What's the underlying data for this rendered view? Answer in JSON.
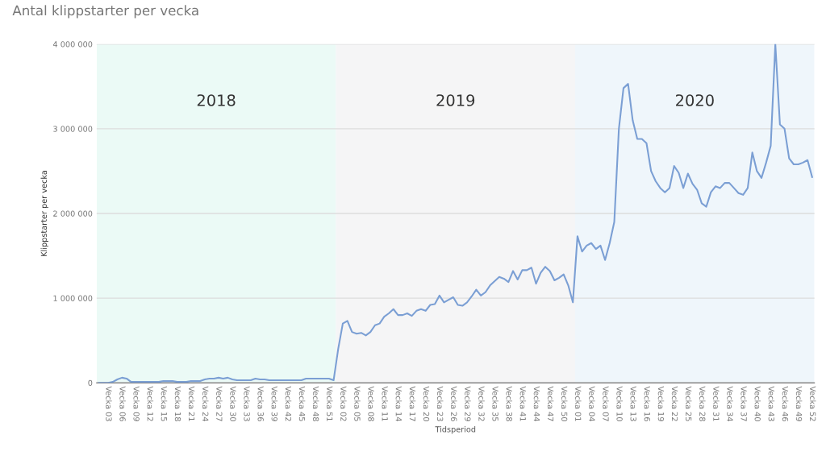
{
  "chart_data": {
    "type": "line",
    "title": "Antal klippstarter per vecka",
    "ylabel": "Klippstarter per vecka",
    "xlabel": "Tidsperiod",
    "categories": [
      null,
      null,
      "Vecka 03",
      null,
      null,
      "Vecka 06",
      null,
      null,
      "Vecka 09",
      null,
      null,
      "Vecka 12",
      null,
      null,
      "Vecka 15",
      null,
      null,
      "Vecka 18",
      null,
      null,
      "Vecka 21",
      null,
      null,
      "Vecka 24",
      null,
      null,
      "Vecka 27",
      null,
      null,
      "Vecka 30",
      null,
      null,
      "Vecka 33",
      null,
      null,
      "Vecka 36",
      null,
      null,
      "Vecka 39",
      null,
      null,
      "Vecka 42",
      null,
      null,
      "Vecka 45",
      null,
      null,
      "Vecka 48",
      null,
      null,
      "Vecka 51",
      null,
      null,
      "Vecka 02",
      null,
      null,
      "Vecka 05",
      null,
      null,
      "Vecka 08",
      null,
      null,
      "Vecka 11",
      null,
      null,
      "Vecka 14",
      null,
      null,
      "Vecka 17",
      null,
      null,
      "Vecka 20",
      null,
      null,
      "Vecka 23",
      null,
      null,
      "Vecka 26",
      null,
      null,
      "Vecka 29",
      null,
      null,
      "Vecka 32",
      null,
      null,
      "Vecka 35",
      null,
      null,
      "Vecka 38",
      null,
      null,
      "Vecka 41",
      null,
      null,
      "Vecka 44",
      null,
      null,
      "Vecka 47",
      null,
      null,
      "Vecka 50",
      null,
      null,
      "Vecka 01",
      null,
      null,
      "Vecka 04",
      null,
      null,
      "Vecka 07",
      null,
      null,
      "Vecka 10",
      null,
      null,
      "Vecka 13",
      null,
      null,
      "Vecka 16",
      null,
      null,
      "Vecka 19",
      null,
      null,
      "Vecka 22",
      null,
      null,
      "Vecka 25",
      null,
      null,
      "Vecka 28",
      null,
      null,
      "Vecka 31",
      null,
      null,
      "Vecka 34",
      null,
      null,
      "Vecka 37",
      null,
      null,
      "Vecka 40",
      null,
      null,
      "Vecka 43",
      null,
      null,
      "Vecka 46",
      null,
      null,
      "Vecka 49",
      null,
      null,
      "Vecka 52"
    ],
    "series": [
      {
        "color": "#7b9fd4",
        "values": [
          0,
          0,
          0,
          10000,
          40000,
          60000,
          50000,
          10000,
          10000,
          10000,
          10000,
          10000,
          10000,
          10000,
          20000,
          20000,
          20000,
          10000,
          10000,
          10000,
          20000,
          20000,
          20000,
          40000,
          50000,
          50000,
          60000,
          50000,
          60000,
          40000,
          30000,
          30000,
          30000,
          30000,
          50000,
          40000,
          40000,
          30000,
          30000,
          30000,
          30000,
          30000,
          30000,
          30000,
          30000,
          50000,
          50000,
          50000,
          50000,
          50000,
          50000,
          30000,
          400000,
          700000,
          730000,
          600000,
          580000,
          590000,
          560000,
          600000,
          680000,
          700000,
          780000,
          820000,
          870000,
          800000,
          800000,
          820000,
          790000,
          850000,
          870000,
          850000,
          920000,
          930000,
          1030000,
          950000,
          980000,
          1010000,
          920000,
          910000,
          950000,
          1020000,
          1100000,
          1030000,
          1070000,
          1150000,
          1200000,
          1250000,
          1230000,
          1190000,
          1320000,
          1220000,
          1330000,
          1330000,
          1360000,
          1170000,
          1300000,
          1370000,
          1320000,
          1210000,
          1240000,
          1280000,
          1150000,
          950000,
          1730000,
          1550000,
          1620000,
          1650000,
          1580000,
          1620000,
          1450000,
          1650000,
          1900000,
          3000000,
          3480000,
          3530000,
          3100000,
          2880000,
          2880000,
          2830000,
          2500000,
          2380000,
          2300000,
          2250000,
          2300000,
          2560000,
          2480000,
          2300000,
          2470000,
          2350000,
          2280000,
          2120000,
          2080000,
          2250000,
          2320000,
          2300000,
          2360000,
          2360000,
          2300000,
          2240000,
          2220000,
          2300000,
          2720000,
          2500000,
          2420000,
          2600000,
          2800000,
          4000000,
          3050000,
          3000000,
          2650000,
          2580000,
          2580000,
          2600000,
          2630000,
          2430000
        ]
      }
    ],
    "ylim": [
      0,
      4000000
    ],
    "yticks": [
      0,
      {
        "value": 1000000,
        "label": "1 000 000"
      },
      {
        "value": 2000000,
        "label": "2 000 000"
      },
      {
        "value": 3000000,
        "label": "3 000 000"
      },
      {
        "value": 4000000,
        "label": "4 000 000"
      }
    ],
    "grid": "y",
    "legend": false,
    "marker": "none",
    "line_style": "solid",
    "annotations": [
      "2018",
      "2019",
      "2020"
    ]
  }
}
